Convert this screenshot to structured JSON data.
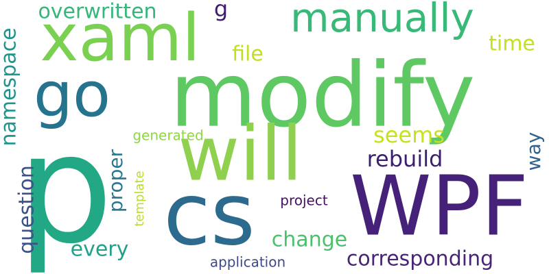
{
  "wordcloud": {
    "words": [
      {
        "text": "p",
        "color": "#22a884"
      },
      {
        "text": "modify",
        "color": "#5ec962"
      },
      {
        "text": "WPF",
        "color": "#45217a"
      },
      {
        "text": "cs",
        "color": "#2c6b8e"
      },
      {
        "text": "will",
        "color": "#8fd14f"
      },
      {
        "text": "xaml",
        "color": "#7ad151"
      },
      {
        "text": "go",
        "color": "#26738d"
      },
      {
        "text": "manually",
        "color": "#39b977"
      },
      {
        "text": "overwritten",
        "color": "#35b779"
      },
      {
        "text": "g",
        "color": "#3f1c6e"
      },
      {
        "text": "file",
        "color": "#c2df23"
      },
      {
        "text": "time",
        "color": "#c4e01e"
      },
      {
        "text": "namespace",
        "color": "#21928c"
      },
      {
        "text": "seems",
        "color": "#c6e11e"
      },
      {
        "text": "generated",
        "color": "#8fd744"
      },
      {
        "text": "way",
        "color": "#33638d"
      },
      {
        "text": "rebuild",
        "color": "#3b1f6e"
      },
      {
        "text": "question",
        "color": "#3b528b"
      },
      {
        "text": "proper",
        "color": "#2a788e"
      },
      {
        "text": "template",
        "color": "#b8de29"
      },
      {
        "text": "project",
        "color": "#471063"
      },
      {
        "text": "change",
        "color": "#4ac16d"
      },
      {
        "text": "every",
        "color": "#1fa287"
      },
      {
        "text": "corresponding",
        "color": "#482576"
      },
      {
        "text": "application",
        "color": "#3e4989"
      }
    ]
  }
}
